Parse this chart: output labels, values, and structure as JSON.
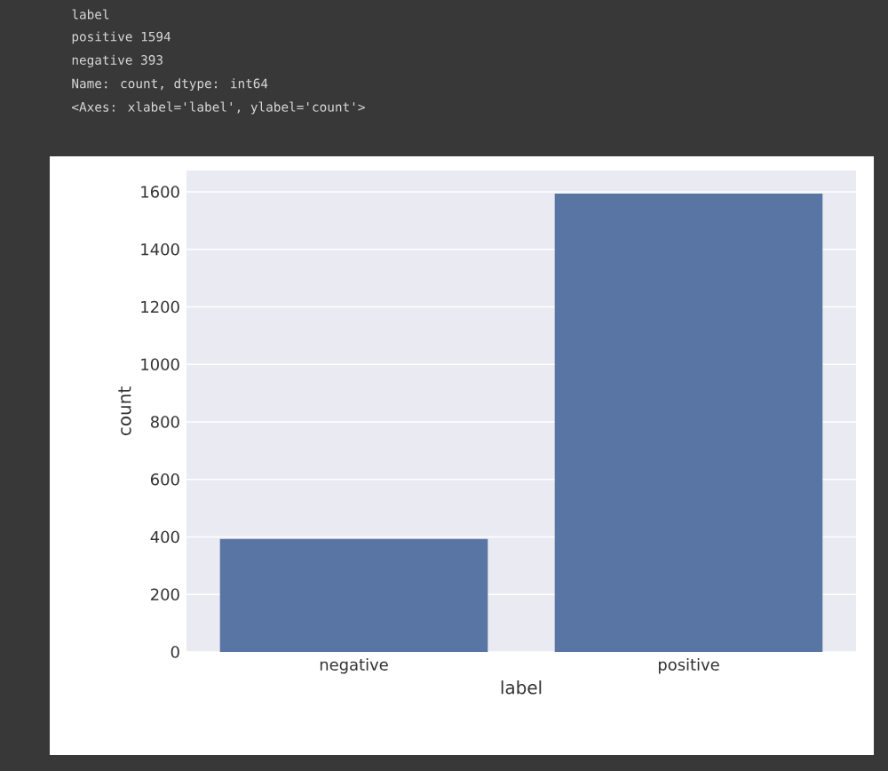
{
  "chart_data": {
    "type": "bar",
    "annotations": [
      "label",
      "positive    1594",
      "negative     393",
      "Name: count, dtype: int64",
      "<Axes: xlabel='label', ylabel='count'>"
    ],
    "categories": [
      "negative",
      "positive"
    ],
    "values": [
      393,
      1594
    ],
    "color": "#5975a4",
    "xlabel": "label",
    "ylabel": "count",
    "ylim": [
      0,
      1674
    ],
    "yticks": [
      0,
      200,
      400,
      600,
      800,
      1000,
      1200,
      1400,
      1600
    ],
    "grid": "y"
  }
}
